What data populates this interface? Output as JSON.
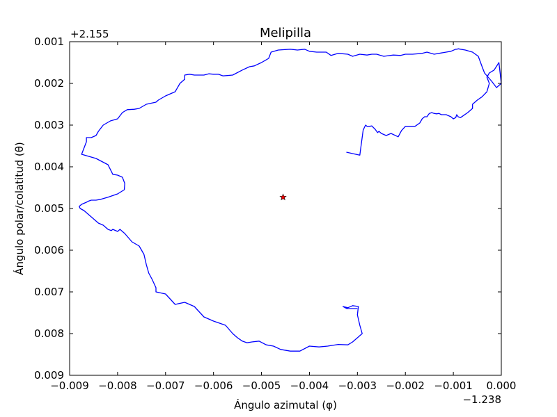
{
  "chart_data": {
    "type": "line",
    "title": "Melipilla",
    "xlabel": "Ángulo azimutal (φ)",
    "ylabel": "Ángulo polar/colatitud (θ)",
    "x_offset_label": "−1.238",
    "y_offset_label": "+2.155",
    "xlim": [
      -0.009,
      0.0
    ],
    "ylim": [
      0.009,
      0.001
    ],
    "y_inverted": true,
    "x_ticks": [
      -0.009,
      -0.008,
      -0.007,
      -0.006,
      -0.005,
      -0.004,
      -0.003,
      -0.002,
      -0.001,
      0.0
    ],
    "x_tick_labels": [
      "−0.009",
      "−0.008",
      "−0.007",
      "−0.006",
      "−0.005",
      "−0.004",
      "−0.003",
      "−0.002",
      "−0.001",
      "0.000"
    ],
    "y_ticks": [
      0.001,
      0.002,
      0.003,
      0.004,
      0.005,
      0.006,
      0.007,
      0.008,
      0.009
    ],
    "y_tick_labels": [
      "0.001",
      "0.002",
      "0.003",
      "0.004",
      "0.005",
      "0.006",
      "0.007",
      "0.008",
      "0.009"
    ],
    "grid": false,
    "series": [
      {
        "color": "#0000ff",
        "x": [
          -0.00323,
          -0.00295,
          -0.00288,
          -0.00283,
          -0.0028,
          -0.00275,
          -0.0027,
          -0.00263,
          -0.00258,
          -0.00255,
          -0.0025,
          -0.0024,
          -0.0023,
          -0.00215,
          -0.00208,
          -0.002,
          -0.0018,
          -0.0017,
          -0.00165,
          -0.0016,
          -0.00155,
          -0.00152,
          -0.0015,
          -0.00145,
          -0.0014,
          -0.00135,
          -0.0013,
          -0.00125,
          -0.00115,
          -0.00105,
          -0.001,
          -0.00095,
          -0.00093,
          -0.0009,
          -0.00085,
          -0.0008,
          -0.0007,
          -0.0006,
          -0.0006,
          -0.0005,
          -0.0004,
          -0.0003,
          -0.00025,
          -0.0003,
          -0.00025,
          -0.00015,
          -5e-05,
          0.0,
          -0.0001,
          -0.0002,
          -0.00035,
          -0.0004,
          -0.00048,
          -0.0006,
          -0.00075,
          -0.00085,
          -0.0009,
          -0.00092,
          -0.00095,
          -0.00105,
          -0.00115,
          -0.00125,
          -0.0014,
          -0.00155,
          -0.00165,
          -0.00185,
          -0.002,
          -0.0021,
          -0.00225,
          -0.00245,
          -0.0026,
          -0.0027,
          -0.0028,
          -0.00295,
          -0.0031,
          -0.0032,
          -0.0034,
          -0.00355,
          -0.00365,
          -0.00385,
          -0.004,
          -0.0041,
          -0.00425,
          -0.0044,
          -0.00465,
          -0.0048,
          -0.00485,
          -0.005,
          -0.00515,
          -0.00525,
          -0.0054,
          -0.0056,
          -0.0058,
          -0.0059,
          -0.006,
          -0.0061,
          -0.0062,
          -0.0064,
          -0.0065,
          -0.0066,
          -0.0066,
          -0.0067,
          -0.0068,
          -0.007,
          -0.00715,
          -0.0072,
          -0.0074,
          -0.00755,
          -0.00765,
          -0.0078,
          -0.0079,
          -0.008,
          -0.00815,
          -0.0083,
          -0.0084,
          -0.00845,
          -0.00855,
          -0.00865,
          -0.00865,
          -0.0087,
          -0.00875,
          -0.0086,
          -0.00845,
          -0.0082,
          -0.0081,
          -0.008,
          -0.0079,
          -0.00785,
          -0.00786,
          -0.008,
          -0.0082,
          -0.00835,
          -0.00845,
          -0.00855,
          -0.0086,
          -0.00865,
          -0.00875,
          -0.0088,
          -0.00878,
          -0.0087,
          -0.0086,
          -0.0085,
          -0.0084,
          -0.0083,
          -0.0082,
          -0.00813,
          -0.0081,
          -0.008,
          -0.00795,
          -0.00785,
          -0.0077,
          -0.00755,
          -0.00745,
          -0.0074,
          -0.00735,
          -0.00728,
          -0.0072,
          -0.0072,
          -0.007,
          -0.0068,
          -0.0066,
          -0.0064,
          -0.0062,
          -0.006,
          -0.00575,
          -0.0056,
          -0.0055,
          -0.0054,
          -0.0053,
          -0.0052,
          -0.00505,
          -0.0049,
          -0.00475,
          -0.0046,
          -0.0044,
          -0.0042,
          -0.004,
          -0.0038,
          -0.00362,
          -0.0034,
          -0.0032,
          -0.0031,
          -0.003,
          -0.0029,
          -0.00295,
          -0.003,
          -0.00298,
          -0.0031,
          -0.0032,
          -0.0033,
          -0.00322,
          -0.003
        ],
        "y": [
          0.00365,
          0.00372,
          0.00312,
          0.003,
          0.00303,
          0.00303,
          0.00302,
          0.0031,
          0.00318,
          0.00315,
          0.0032,
          0.00325,
          0.0032,
          0.00328,
          0.00313,
          0.00303,
          0.00303,
          0.00295,
          0.00285,
          0.0028,
          0.0028,
          0.00275,
          0.00272,
          0.0027,
          0.00272,
          0.00273,
          0.00272,
          0.00275,
          0.00275,
          0.0028,
          0.00285,
          0.00282,
          0.00275,
          0.0028,
          0.00282,
          0.00278,
          0.0027,
          0.0026,
          0.0025,
          0.0024,
          0.00232,
          0.0022,
          0.002,
          0.00185,
          0.00175,
          0.00168,
          0.0015,
          0.002,
          0.0021,
          0.00195,
          0.00175,
          0.0016,
          0.00135,
          0.00125,
          0.0012,
          0.00118,
          0.00117,
          0.00118,
          0.00118,
          0.00123,
          0.00125,
          0.00127,
          0.0013,
          0.00125,
          0.00128,
          0.0013,
          0.0013,
          0.00133,
          0.00132,
          0.00135,
          0.0013,
          0.0013,
          0.00132,
          0.0013,
          0.00135,
          0.0013,
          0.00128,
          0.00133,
          0.00125,
          0.00125,
          0.00123,
          0.00118,
          0.0012,
          0.00118,
          0.0012,
          0.00125,
          0.0014,
          0.0015,
          0.00158,
          0.0016,
          0.00168,
          0.0018,
          0.00182,
          0.00178,
          0.00178,
          0.00177,
          0.0018,
          0.0018,
          0.00178,
          0.0018,
          0.0019,
          0.002,
          0.0022,
          0.0023,
          0.0024,
          0.00245,
          0.0025,
          0.0026,
          0.00262,
          0.00263,
          0.0027,
          0.00285,
          0.0029,
          0.003,
          0.00315,
          0.00325,
          0.0033,
          0.0033,
          0.0034,
          0.00355,
          0.0037,
          0.00375,
          0.0038,
          0.00395,
          0.00418,
          0.0042,
          0.00425,
          0.0044,
          0.00455,
          0.00465,
          0.00473,
          0.00478,
          0.0048,
          0.0048,
          0.00482,
          0.00485,
          0.0049,
          0.00495,
          0.005,
          0.00505,
          0.00515,
          0.00525,
          0.00535,
          0.0054,
          0.0055,
          0.00553,
          0.0055,
          0.00555,
          0.0055,
          0.0056,
          0.0058,
          0.0059,
          0.0061,
          0.00635,
          0.00655,
          0.0067,
          0.0069,
          0.007,
          0.00705,
          0.0073,
          0.00725,
          0.00735,
          0.0076,
          0.0077,
          0.0078,
          0.008,
          0.0081,
          0.00818,
          0.00822,
          0.0082,
          0.00818,
          0.00827,
          0.0083,
          0.00838,
          0.00842,
          0.00842,
          0.0083,
          0.00832,
          0.0083,
          0.00826,
          0.00827,
          0.0082,
          0.0081,
          0.008,
          0.0078,
          0.00755,
          0.00735,
          0.00733,
          0.00738,
          0.00735,
          0.0074,
          0.0074
        ]
      }
    ],
    "marker": {
      "x": -0.00455,
      "y": 0.00473,
      "symbol": "star",
      "color": "#ff0000"
    }
  }
}
